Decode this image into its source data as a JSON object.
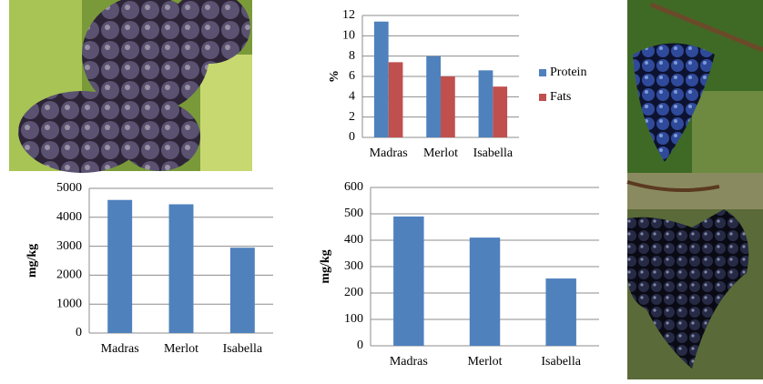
{
  "chart_data": [
    {
      "type": "bar",
      "ylabel": "%",
      "categories": [
        "Madras",
        "Merlot",
        "Isabella"
      ],
      "series": [
        {
          "name": "Protein",
          "color": "#4f81bd",
          "values": [
            11.4,
            8,
            6.6
          ]
        },
        {
          "name": "Fats",
          "color": "#c0504d",
          "values": [
            7.4,
            6,
            5
          ]
        }
      ],
      "ylim": [
        0,
        12
      ],
      "yticks": [
        0,
        2,
        4,
        6,
        8,
        10,
        12
      ],
      "grid": true,
      "legend": "right"
    },
    {
      "type": "bar",
      "ylabel": "mg/kg",
      "categories": [
        "Madras",
        "Merlot",
        "Isabella"
      ],
      "values": [
        4600,
        4450,
        2950
      ],
      "color": "#4f81bd",
      "ylim": [
        0,
        5000
      ],
      "yticks": [
        0,
        1000,
        2000,
        3000,
        4000,
        5000
      ],
      "grid": true
    },
    {
      "type": "bar",
      "ylabel": "mg/kg",
      "categories": [
        "Madras",
        "Merlot",
        "Isabella"
      ],
      "values": [
        490,
        410,
        255
      ],
      "color": "#4f81bd",
      "ylim": [
        0,
        600
      ],
      "yticks": [
        0,
        100,
        200,
        300,
        400,
        500,
        600
      ],
      "grid": true
    }
  ]
}
